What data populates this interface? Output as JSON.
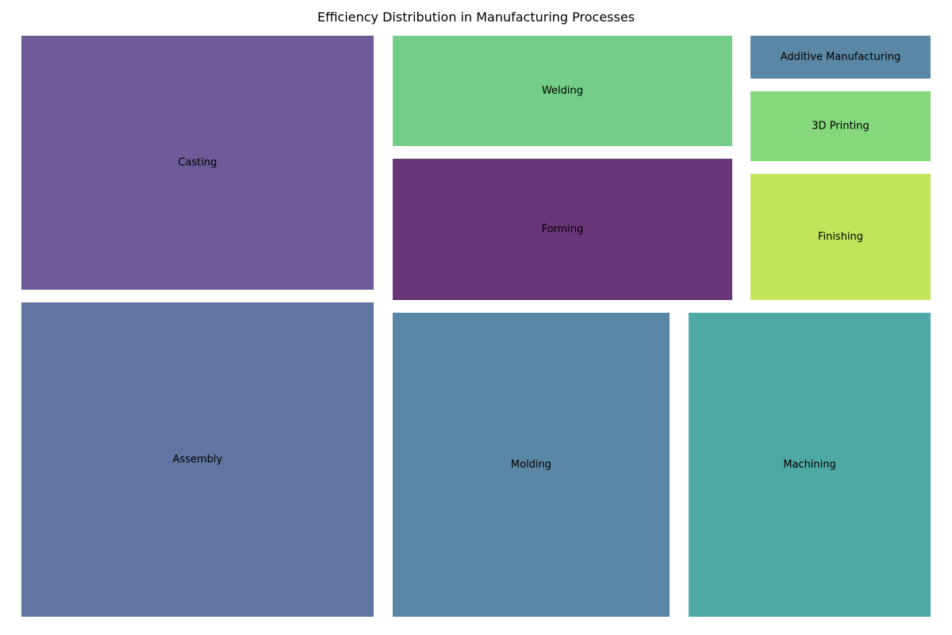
{
  "chart_data": {
    "type": "treemap",
    "title": "Efficiency Distribution in Manufacturing Processes",
    "items": [
      {
        "label": "Assembly",
        "color": "#6076a2"
      },
      {
        "label": "Casting",
        "color": "#6c5b98"
      },
      {
        "label": "Molding",
        "color": "#5b87a6"
      },
      {
        "label": "Machining",
        "color": "#4ea8a6"
      },
      {
        "label": "Welding",
        "color": "#72ce88"
      },
      {
        "label": "Forming",
        "color": "#693579"
      },
      {
        "label": "Additive Manufacturing",
        "color": "#5b87a6"
      },
      {
        "label": "3D Printing",
        "color": "#86d87c"
      },
      {
        "label": "Finishing",
        "color": "#c2e45a"
      }
    ]
  }
}
